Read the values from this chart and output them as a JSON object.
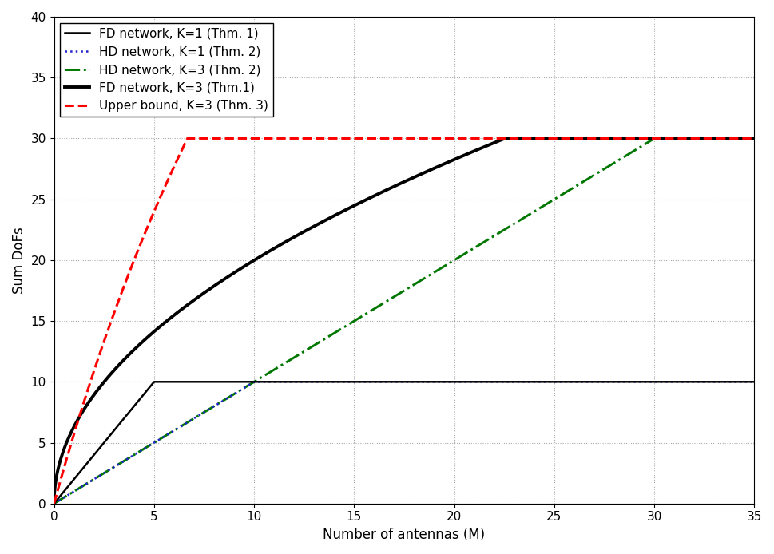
{
  "N": 10,
  "K3_max": 30,
  "K1_max": 10,
  "xlim": [
    0,
    35
  ],
  "ylim": [
    0,
    40
  ],
  "x_ticks": [
    0,
    5,
    10,
    15,
    20,
    25,
    30,
    35
  ],
  "y_ticks": [
    0,
    5,
    10,
    15,
    20,
    25,
    30,
    35,
    40
  ],
  "xlabel": "Number of antennas (M)",
  "ylabel": "Sum DoFs",
  "legend": [
    "Upper bound, K=3 (Thm. 3)",
    "FD network, K=3 (Thm.1)",
    "HD network, K=3 (Thm. 2)",
    "FD network, K=1 (Thm. 1)",
    "HD network, K=1 (Thm. 2)"
  ],
  "color_upper_k3": "#FF0000",
  "color_fd_k3": "#000000",
  "color_hd_k3": "#007700",
  "color_fd_k1": "#000000",
  "color_hd_k1": "#2222CC",
  "lw_thick": 2.8,
  "lw_thin": 1.8,
  "lw_upper": 2.2,
  "background": "#FFFFFF",
  "grid_color": "#AAAAAA",
  "legend_fontsize": 11,
  "axis_fontsize": 12
}
